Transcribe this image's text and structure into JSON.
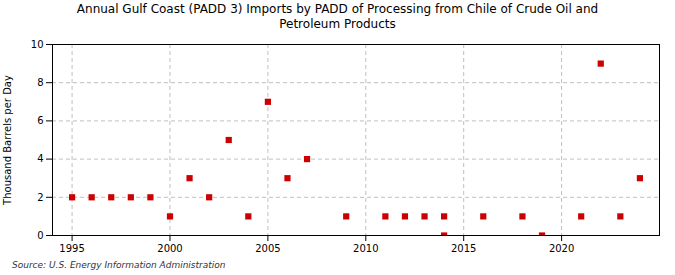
{
  "chart_data": {
    "type": "scatter",
    "title": "Annual Gulf Coast (PADD 3) Imports by PADD of Processing from Chile of Crude Oil and\nPetroleum Products",
    "ylabel": "Thousand Barrels per Day",
    "source": "Source: U.S. Energy Information Administration",
    "x": [
      1995,
      1996,
      1997,
      1998,
      1999,
      2000,
      2001,
      2002,
      2003,
      2004,
      2005,
      2006,
      2007,
      2009,
      2011,
      2012,
      2013,
      2014,
      2014,
      2016,
      2018,
      2019,
      2021,
      2022,
      2023,
      2024
    ],
    "values": [
      2,
      2,
      2,
      2,
      2,
      1,
      3,
      2,
      5,
      1,
      7,
      3,
      4,
      1,
      1,
      1,
      1,
      1,
      0,
      1,
      1,
      0,
      1,
      9,
      1,
      3
    ],
    "color": "#cc0000",
    "marker": "square",
    "xlim": [
      1994,
      2025
    ],
    "ylim": [
      0,
      10
    ],
    "xticks": [
      1995,
      2000,
      2005,
      2010,
      2015,
      2020
    ],
    "yticks": [
      0,
      2,
      4,
      6,
      8,
      10
    ],
    "grid": true
  }
}
